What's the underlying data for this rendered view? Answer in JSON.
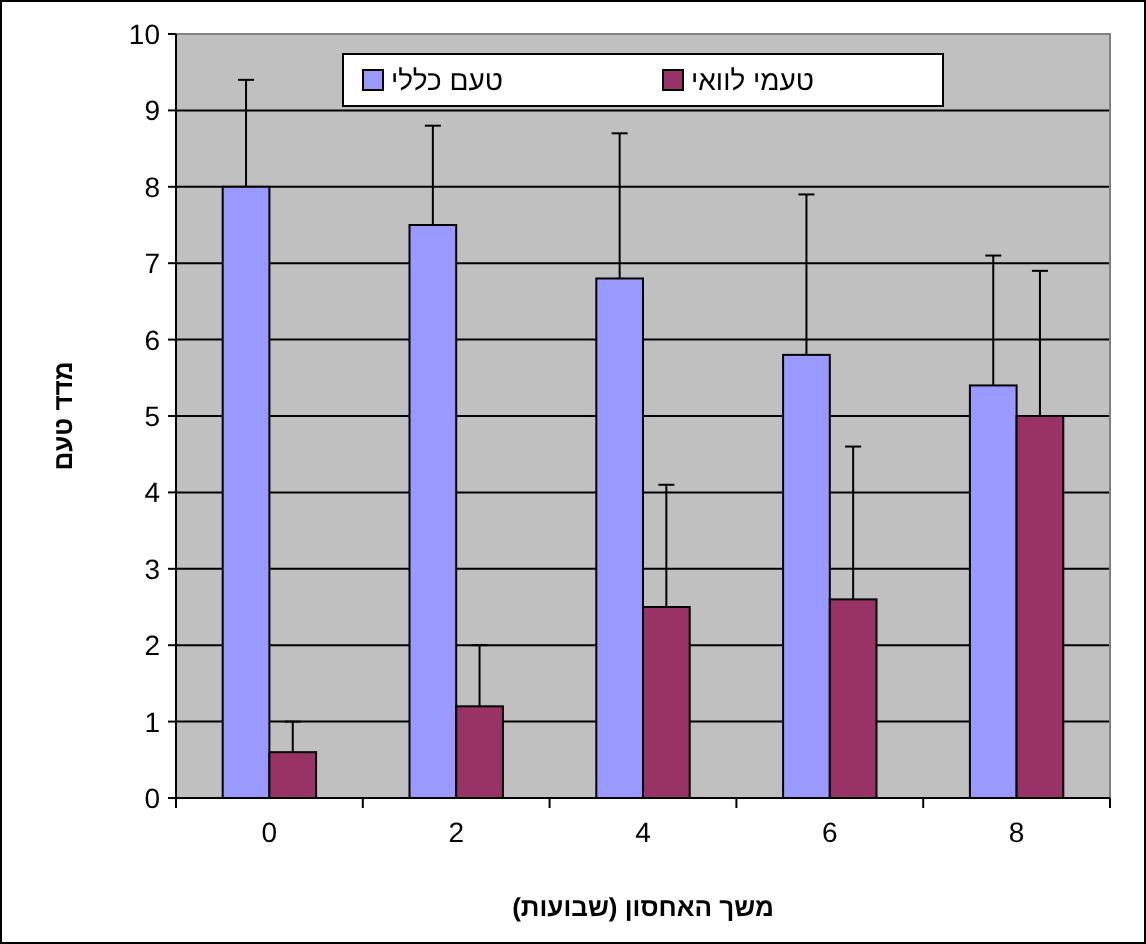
{
  "chart_data": {
    "type": "bar",
    "xlabel": "משך האחסון (שבועות)",
    "ylabel": "מדד טעם",
    "categories": [
      "0",
      "2",
      "4",
      "6",
      "8"
    ],
    "series": [
      {
        "name": "טעם כללי",
        "color": "#9999ff",
        "values": [
          8,
          7.5,
          6.8,
          5.8,
          5.4
        ],
        "errors": [
          [
            8,
            9.4
          ],
          [
            7.5,
            8.8
          ],
          [
            6.8,
            8.7
          ],
          [
            5.8,
            7.9
          ],
          [
            5.4,
            7.1
          ]
        ]
      },
      {
        "name": "טעמי לוואי",
        "color": "#993366",
        "values": [
          0.6,
          1.2,
          2.5,
          2.6,
          5.0
        ],
        "errors": [
          [
            0.6,
            1.0
          ],
          [
            1.2,
            2.0
          ],
          [
            2.5,
            4.1
          ],
          [
            2.6,
            4.6
          ],
          [
            5.0,
            6.9
          ]
        ]
      }
    ],
    "ylim": [
      0,
      10
    ],
    "yticks": [
      0,
      1,
      2,
      3,
      4,
      5,
      6,
      7,
      8,
      9,
      10
    ],
    "grid": "y",
    "legend": "top"
  }
}
